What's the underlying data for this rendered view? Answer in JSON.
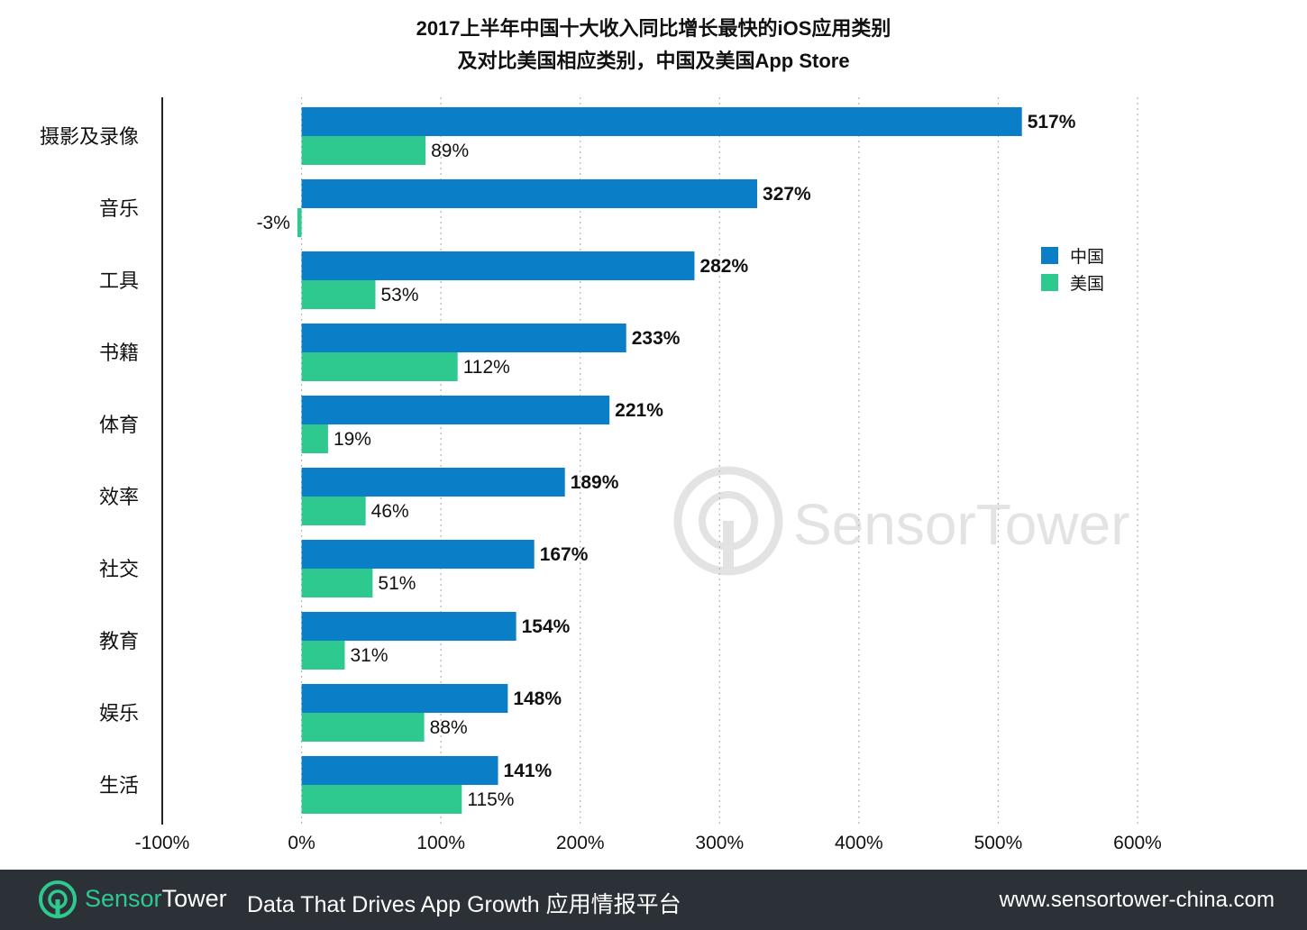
{
  "title": {
    "line1": "2017上半年中国十大收入同比增长最快的iOS应用类别",
    "line2": "及对比美国相应类别，中国及美国App Store"
  },
  "chart_data": {
    "type": "bar",
    "orientation": "horizontal",
    "categories": [
      "摄影及录像",
      "音乐",
      "工具",
      "书籍",
      "体育",
      "效率",
      "社交",
      "教育",
      "娱乐",
      "生活"
    ],
    "series": [
      {
        "name": "中国",
        "color": "#0a7fc8",
        "values": [
          517,
          327,
          282,
          233,
          221,
          189,
          167,
          154,
          148,
          141
        ],
        "labels": [
          "517%",
          "327%",
          "282%",
          "233%",
          "221%",
          "189%",
          "167%",
          "154%",
          "148%",
          "141%"
        ]
      },
      {
        "name": "美国",
        "color": "#2ec98f",
        "values": [
          89,
          -3,
          53,
          112,
          19,
          46,
          51,
          31,
          88,
          115
        ],
        "labels": [
          "89%",
          "-3%",
          "53%",
          "112%",
          "19%",
          "46%",
          "51%",
          "31%",
          "88%",
          "115%"
        ]
      }
    ],
    "xlim": [
      -100,
      600
    ],
    "xticks": [
      -100,
      0,
      100,
      200,
      300,
      400,
      500,
      600
    ],
    "xtick_labels": [
      "-100%",
      "0%",
      "100%",
      "200%",
      "300%",
      "400%",
      "500%",
      "600%"
    ],
    "grid": "vertical dotted",
    "legend_position": "right"
  },
  "watermark": {
    "text": "SensorTower"
  },
  "footer": {
    "brand_part1": "Sensor",
    "brand_part2": "Tower",
    "tagline": "Data That Drives App Growth  应用情报平台",
    "url": "www.sensortower-china.com"
  },
  "colors": {
    "china": "#0a7fc8",
    "us": "#2ec98f",
    "footer_bg": "#2c3138"
  }
}
